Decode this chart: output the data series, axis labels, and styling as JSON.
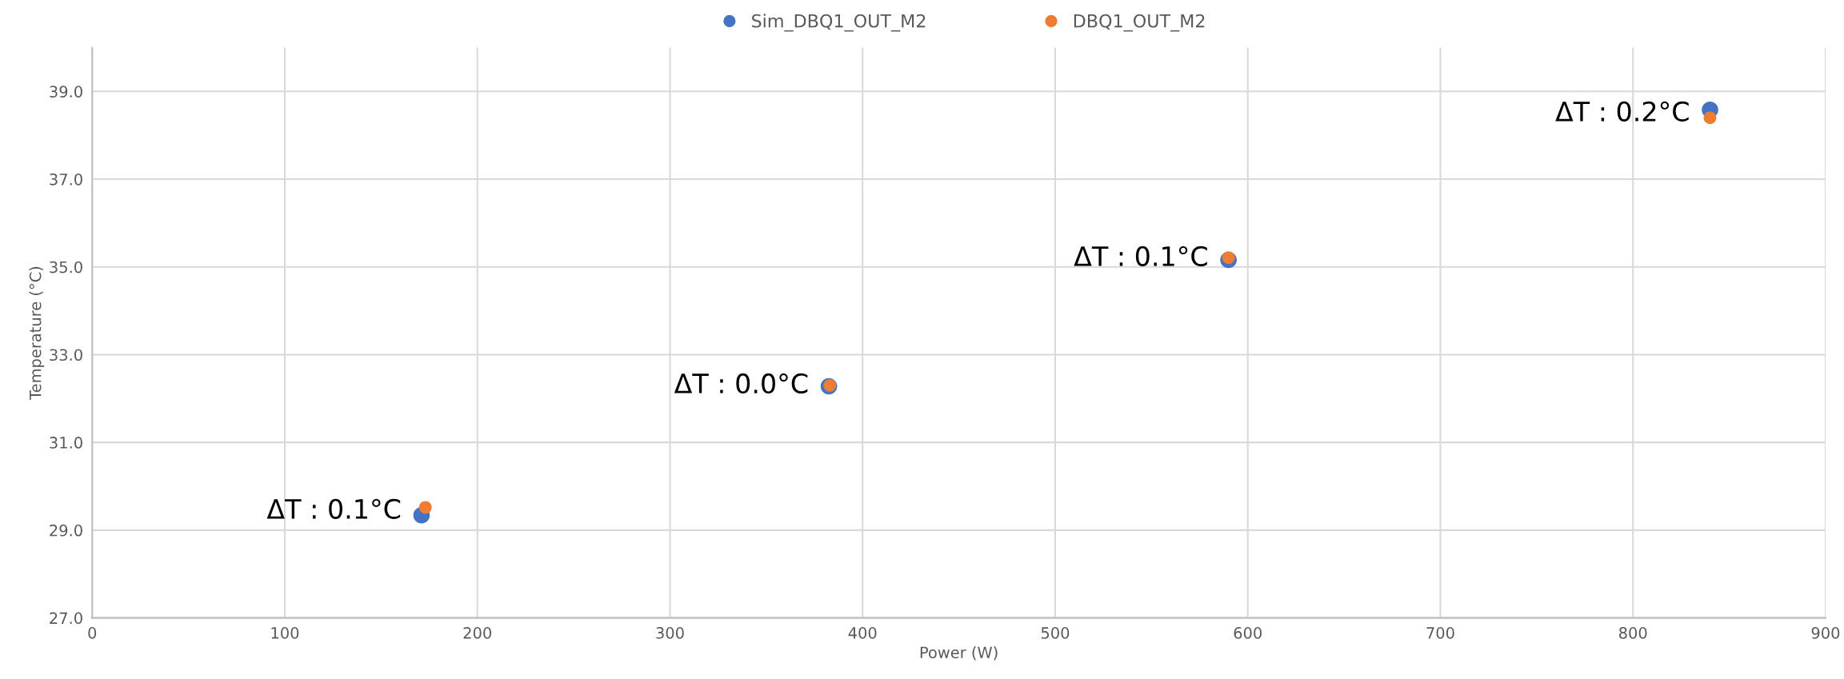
{
  "chart_data": {
    "type": "scatter",
    "xlabel": "Power (W)",
    "ylabel": "Temperature (°C)",
    "series": [
      {
        "name": "Sim_DBQ1_OUT_M2",
        "color": "#4472c4",
        "x": [
          171,
          382.5,
          590,
          840
        ],
        "values": [
          29.34,
          32.28,
          35.16,
          38.58
        ]
      },
      {
        "name": "DBQ1_OUT_M2",
        "color": "#ed7d31",
        "x": [
          173,
          383,
          590,
          840
        ],
        "values": [
          29.52,
          32.3,
          35.21,
          38.4
        ]
      }
    ],
    "annotations": [
      {
        "text": "ΔT : 0.1°C",
        "x": 171,
        "y": 29.43
      },
      {
        "text": "ΔT : 0.0°C",
        "x": 382.5,
        "y": 32.29
      },
      {
        "text": "ΔT : 0.1°C",
        "x": 590,
        "y": 35.19
      },
      {
        "text": "ΔT : 0.2°C",
        "x": 840,
        "y": 38.49
      }
    ],
    "xlim": [
      0,
      900
    ],
    "xticks": [
      0,
      100,
      200,
      300,
      400,
      500,
      600,
      700,
      800,
      900
    ],
    "ylim": [
      27,
      40
    ],
    "yticks": [
      {
        "value": 27,
        "label": "27.0"
      },
      {
        "value": 29,
        "label": "29.0"
      },
      {
        "value": 31,
        "label": "31.0"
      },
      {
        "value": 33,
        "label": "33.0"
      },
      {
        "value": 35,
        "label": "35.0"
      },
      {
        "value": 37,
        "label": "37.0"
      },
      {
        "value": 39,
        "label": "39.0"
      }
    ],
    "grid": true,
    "legend": "top",
    "marker": "circle"
  }
}
